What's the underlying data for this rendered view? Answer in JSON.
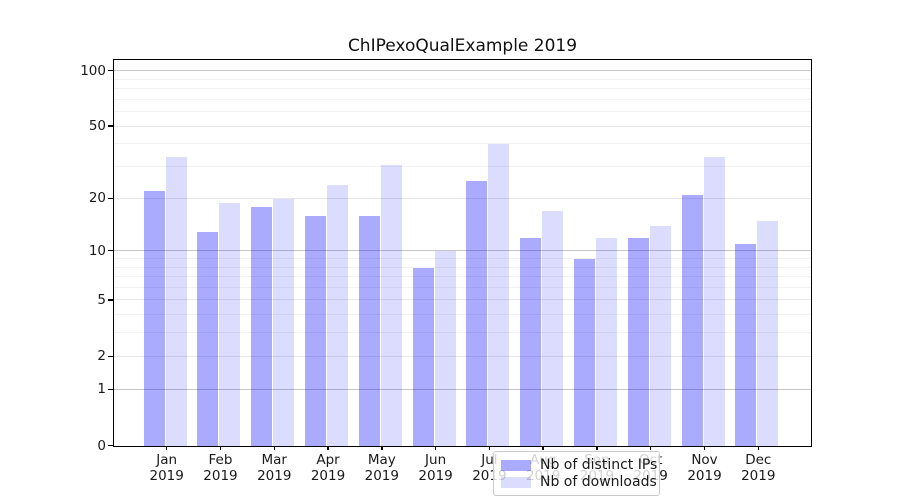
{
  "title": "ChIPexoQualExample 2019",
  "chart_data": {
    "type": "bar",
    "title": "ChIPexoQualExample 2019",
    "categories": [
      "Jan",
      "Feb",
      "Mar",
      "Apr",
      "May",
      "Jun",
      "Jul",
      "Aug",
      "Sep",
      "Oct",
      "Nov",
      "Dec"
    ],
    "year_label": "2019",
    "series": [
      {
        "name": "Nb of distinct IPs",
        "color": "rgba(0,0,255,0.335)",
        "values": [
          22,
          13,
          18,
          16,
          16,
          8,
          25,
          12,
          9,
          12,
          21,
          11
        ]
      },
      {
        "name": "Nb of downloads",
        "color": "rgba(0,0,255,0.137)",
        "values": [
          34,
          19,
          20,
          24,
          31,
          10,
          40,
          17,
          12,
          14,
          34,
          15
        ]
      }
    ],
    "xlabel": "",
    "ylabel": "",
    "y_axis": {
      "scale": "log(value+1)",
      "tick_values": [
        0,
        1,
        2,
        5,
        10,
        20,
        50,
        100
      ],
      "decade_gridlines": [
        1,
        10,
        100
      ],
      "mid_gridlines": [
        2,
        5,
        20,
        50
      ],
      "minor_gridlines": [
        3,
        4,
        6,
        7,
        8,
        9,
        30,
        40,
        60,
        70,
        80,
        90
      ],
      "ylim": [
        0,
        113
      ]
    },
    "grid": "on",
    "legend_position": "bottom-center"
  },
  "colors": {
    "bar_distinct_ips": "rgba(0,0,255,0.335)",
    "bar_downloads": "rgba(0,0,255,0.137)",
    "grid_decade": "#c7c7c7",
    "grid_mid": "#e7e7e7",
    "grid_minor": "#f2f2f2",
    "spine": "#000000"
  }
}
